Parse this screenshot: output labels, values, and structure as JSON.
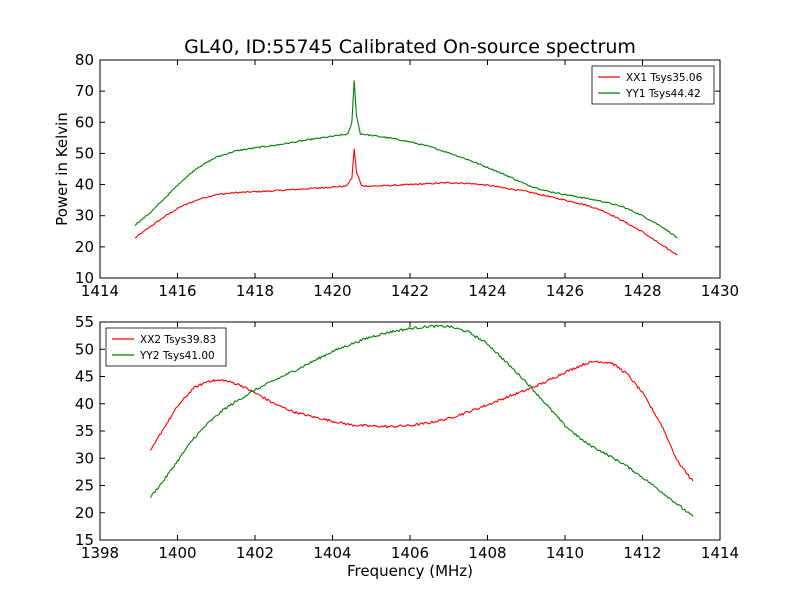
{
  "figure": {
    "title": "GL40, ID:55745 Calibrated On-source spectrum"
  },
  "chart_data": [
    {
      "type": "line",
      "title": "GL40, ID:55745 Calibrated On-source spectrum",
      "xlabel": "",
      "ylabel": "Power in Kelvin",
      "xlim": [
        1414,
        1430
      ],
      "ylim": [
        10,
        80
      ],
      "xticks": [
        1414,
        1416,
        1418,
        1420,
        1422,
        1424,
        1426,
        1428,
        1430
      ],
      "yticks": [
        10,
        20,
        30,
        40,
        50,
        60,
        70,
        80
      ],
      "grid": false,
      "legend_position": "top-right",
      "series": [
        {
          "name": "XX1 Tsys35.06",
          "color": "#ff0000",
          "points": [
            [
              1414.9,
              22.8
            ],
            [
              1415.3,
              26.5
            ],
            [
              1415.7,
              30.0
            ],
            [
              1416.1,
              33.0
            ],
            [
              1416.6,
              35.5
            ],
            [
              1417.0,
              36.8
            ],
            [
              1417.5,
              37.4
            ],
            [
              1418.0,
              37.7
            ],
            [
              1418.5,
              38.0
            ],
            [
              1419.0,
              38.4
            ],
            [
              1419.5,
              38.8
            ],
            [
              1420.0,
              39.2
            ],
            [
              1420.35,
              39.5
            ],
            [
              1420.5,
              42.0
            ],
            [
              1420.56,
              51.5
            ],
            [
              1420.62,
              44.0
            ],
            [
              1420.75,
              39.6
            ],
            [
              1421.0,
              39.5
            ],
            [
              1421.5,
              39.7
            ],
            [
              1422.0,
              40.0
            ],
            [
              1422.5,
              40.3
            ],
            [
              1423.0,
              40.6
            ],
            [
              1423.5,
              40.4
            ],
            [
              1424.0,
              39.8
            ],
            [
              1424.5,
              38.8
            ],
            [
              1425.0,
              37.8
            ],
            [
              1425.5,
              36.4
            ],
            [
              1426.0,
              35.0
            ],
            [
              1426.5,
              33.6
            ],
            [
              1427.0,
              31.5
            ],
            [
              1427.5,
              28.3
            ],
            [
              1428.0,
              24.8
            ],
            [
              1428.5,
              20.5
            ],
            [
              1428.9,
              17.4
            ]
          ]
        },
        {
          "name": "YY1 Tsys44.42",
          "color": "#008000",
          "points": [
            [
              1414.9,
              27.0
            ],
            [
              1415.3,
              31.0
            ],
            [
              1415.7,
              36.0
            ],
            [
              1416.1,
              41.0
            ],
            [
              1416.5,
              45.3
            ],
            [
              1417.0,
              48.8
            ],
            [
              1417.5,
              50.8
            ],
            [
              1418.0,
              51.8
            ],
            [
              1418.5,
              52.6
            ],
            [
              1419.0,
              53.6
            ],
            [
              1419.5,
              54.6
            ],
            [
              1420.0,
              55.5
            ],
            [
              1420.4,
              56.2
            ],
            [
              1420.5,
              60.0
            ],
            [
              1420.56,
              73.5
            ],
            [
              1420.62,
              62.0
            ],
            [
              1420.72,
              56.3
            ],
            [
              1421.0,
              55.8
            ],
            [
              1421.5,
              54.9
            ],
            [
              1422.0,
              53.7
            ],
            [
              1422.5,
              52.2
            ],
            [
              1423.0,
              50.2
            ],
            [
              1423.5,
              48.0
            ],
            [
              1424.0,
              45.5
            ],
            [
              1424.5,
              42.9
            ],
            [
              1425.0,
              40.0
            ],
            [
              1425.5,
              38.0
            ],
            [
              1426.0,
              36.8
            ],
            [
              1426.5,
              35.7
            ],
            [
              1427.0,
              34.5
            ],
            [
              1427.5,
              32.8
            ],
            [
              1428.0,
              30.0
            ],
            [
              1428.5,
              26.5
            ],
            [
              1428.9,
              22.9
            ]
          ]
        }
      ]
    },
    {
      "type": "line",
      "title": "",
      "xlabel": "Frequency (MHz)",
      "ylabel": "",
      "xlim": [
        1398,
        1414
      ],
      "ylim": [
        15,
        55
      ],
      "xticks": [
        1398,
        1400,
        1402,
        1404,
        1406,
        1408,
        1410,
        1412,
        1414
      ],
      "yticks": [
        15,
        20,
        25,
        30,
        35,
        40,
        45,
        50,
        55
      ],
      "grid": false,
      "legend_position": "top-left",
      "series": [
        {
          "name": "XX2 Tsys39.83",
          "color": "#ff0000",
          "points": [
            [
              1399.3,
              31.2
            ],
            [
              1399.6,
              35.0
            ],
            [
              1400.0,
              39.5
            ],
            [
              1400.4,
              42.8
            ],
            [
              1400.8,
              44.2
            ],
            [
              1401.2,
              44.3
            ],
            [
              1401.6,
              43.5
            ],
            [
              1402.0,
              42.0
            ],
            [
              1402.5,
              40.0
            ],
            [
              1403.0,
              38.5
            ],
            [
              1403.5,
              37.6
            ],
            [
              1404.0,
              36.8
            ],
            [
              1404.5,
              36.1
            ],
            [
              1405.0,
              35.9
            ],
            [
              1405.5,
              35.8
            ],
            [
              1406.0,
              36.0
            ],
            [
              1406.5,
              36.5
            ],
            [
              1407.0,
              37.3
            ],
            [
              1407.5,
              38.5
            ],
            [
              1408.0,
              39.8
            ],
            [
              1408.5,
              41.2
            ],
            [
              1409.0,
              42.5
            ],
            [
              1409.5,
              44.0
            ],
            [
              1410.0,
              45.8
            ],
            [
              1410.5,
              47.3
            ],
            [
              1410.8,
              47.8
            ],
            [
              1411.2,
              47.5
            ],
            [
              1411.6,
              45.5
            ],
            [
              1412.0,
              42.0
            ],
            [
              1412.5,
              36.0
            ],
            [
              1412.9,
              29.5
            ],
            [
              1413.3,
              25.8
            ]
          ]
        },
        {
          "name": "YY2 Tsys41.00",
          "color": "#008000",
          "points": [
            [
              1399.3,
              22.9
            ],
            [
              1399.6,
              25.5
            ],
            [
              1400.0,
              29.5
            ],
            [
              1400.4,
              33.5
            ],
            [
              1400.8,
              36.5
            ],
            [
              1401.2,
              39.0
            ],
            [
              1401.6,
              40.8
            ],
            [
              1402.0,
              42.5
            ],
            [
              1402.5,
              44.3
            ],
            [
              1403.0,
              46.0
            ],
            [
              1403.5,
              47.8
            ],
            [
              1404.0,
              49.6
            ],
            [
              1404.5,
              51.0
            ],
            [
              1405.0,
              52.3
            ],
            [
              1405.5,
              53.2
            ],
            [
              1406.0,
              53.8
            ],
            [
              1406.5,
              54.2
            ],
            [
              1407.0,
              54.2
            ],
            [
              1407.5,
              53.2
            ],
            [
              1408.0,
              51.0
            ],
            [
              1408.5,
              47.5
            ],
            [
              1409.0,
              44.0
            ],
            [
              1409.5,
              40.0
            ],
            [
              1410.0,
              36.0
            ],
            [
              1410.5,
              33.0
            ],
            [
              1411.0,
              31.0
            ],
            [
              1411.5,
              29.0
            ],
            [
              1412.0,
              26.5
            ],
            [
              1412.5,
              23.8
            ],
            [
              1413.0,
              21.0
            ],
            [
              1413.3,
              19.3
            ]
          ]
        }
      ]
    }
  ]
}
